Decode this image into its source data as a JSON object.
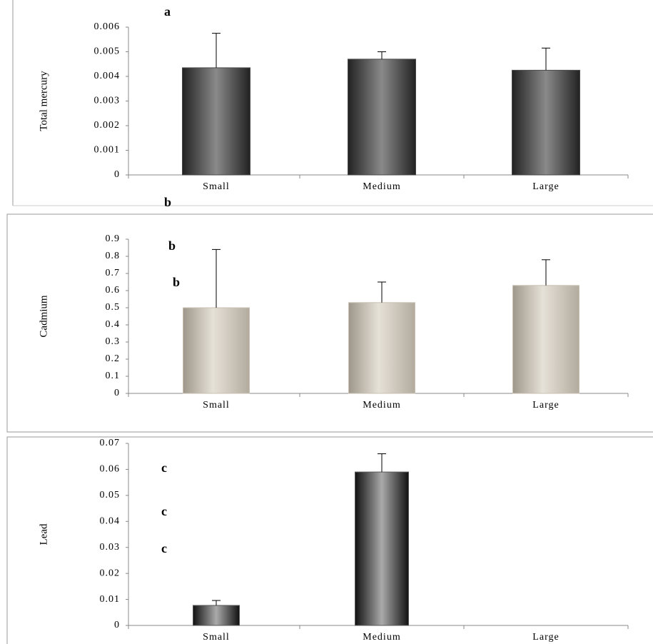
{
  "chart_data": [
    {
      "type": "bar",
      "ylabel": "Total mercury",
      "categories": [
        "Small",
        "Medium",
        "Large"
      ],
      "values": [
        0.00435,
        0.0047,
        0.00425
      ],
      "errors": [
        0.0014,
        0.0003,
        0.0009
      ],
      "color": "#4a4a4a",
      "ylim": [
        0,
        0.006
      ],
      "yticks": [
        0,
        0.001,
        0.002,
        0.003,
        0.004,
        0.005,
        0.006
      ],
      "annotations": [
        "a",
        "b"
      ]
    },
    {
      "type": "bar",
      "ylabel": "Cadmium",
      "categories": [
        "Small",
        "Medium",
        "Large"
      ],
      "values": [
        0.5,
        0.53,
        0.63
      ],
      "errors": [
        0.34,
        0.12,
        0.15
      ],
      "color": "#c9c2b4",
      "ylim": [
        0,
        0.9
      ],
      "yticks": [
        0,
        0.1,
        0.2,
        0.3,
        0.4,
        0.5,
        0.6,
        0.7,
        0.8,
        0.9
      ],
      "annotations": [
        "b",
        "b"
      ]
    },
    {
      "type": "bar",
      "ylabel": "Lead",
      "categories": [
        "Small",
        "Medium",
        "Large"
      ],
      "values": [
        0.0077,
        0.059,
        0
      ],
      "errors": [
        0.0019,
        0.007,
        0
      ],
      "color": "#5a5a5a",
      "ylim": [
        0,
        0.07
      ],
      "yticks": [
        0,
        0.01,
        0.02,
        0.03,
        0.04,
        0.05,
        0.06,
        0.07
      ],
      "annotations": [
        "c",
        "c",
        "c"
      ]
    }
  ]
}
